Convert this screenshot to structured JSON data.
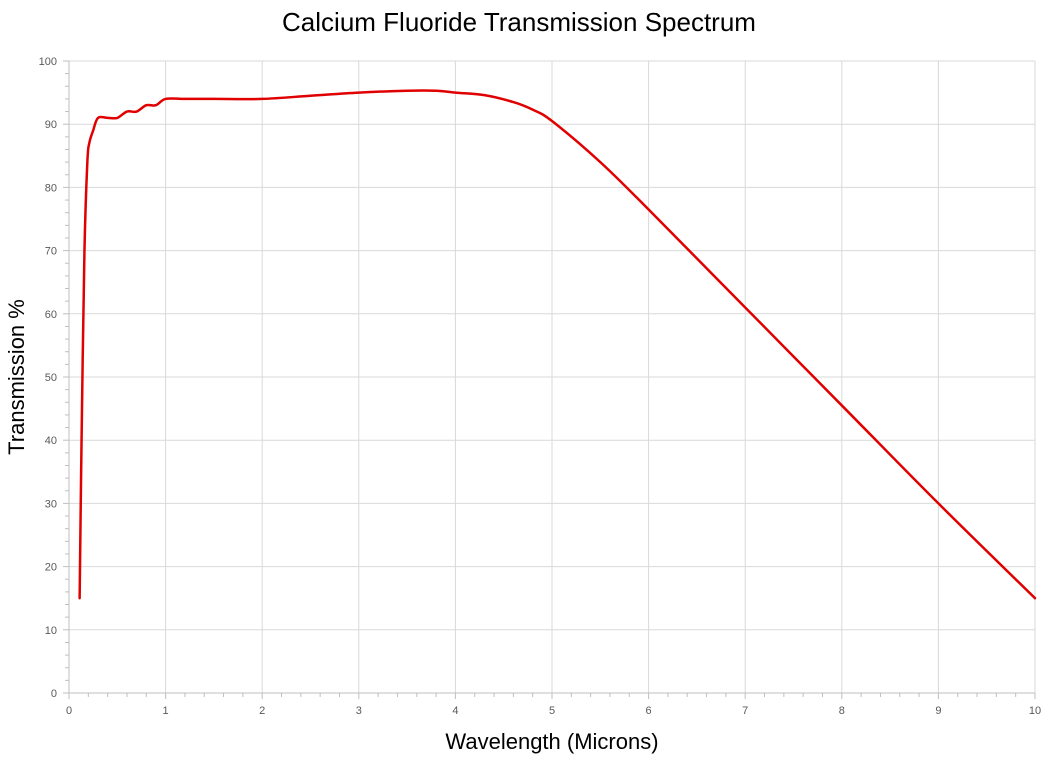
{
  "chart_data": {
    "type": "line",
    "title": "Calcium Fluoride Transmission Spectrum",
    "xlabel": "Wavelength (Microns)",
    "ylabel": "Transmission %",
    "xlim": [
      0,
      10
    ],
    "ylim": [
      0,
      100
    ],
    "x_ticks": [
      "0",
      "1",
      "2",
      "3",
      "4",
      "5",
      "6",
      "7",
      "8",
      "9",
      "10"
    ],
    "y_ticks": [
      "0",
      "10",
      "20",
      "30",
      "40",
      "50",
      "60",
      "70",
      "80",
      "90",
      "100"
    ],
    "grid": true,
    "legend": "none",
    "series": [
      {
        "color": "#e00000",
        "points": [
          [
            0.11,
            15
          ],
          [
            0.13,
            40
          ],
          [
            0.16,
            70
          ],
          [
            0.19,
            84
          ],
          [
            0.21,
            87
          ],
          [
            0.25,
            89
          ],
          [
            0.3,
            91
          ],
          [
            0.4,
            91
          ],
          [
            0.5,
            91
          ],
          [
            0.6,
            92
          ],
          [
            0.7,
            92
          ],
          [
            0.8,
            93
          ],
          [
            0.9,
            93
          ],
          [
            1.0,
            94
          ],
          [
            1.2,
            94
          ],
          [
            1.5,
            94
          ],
          [
            2.0,
            94
          ],
          [
            2.5,
            94.5
          ],
          [
            3.0,
            95
          ],
          [
            3.5,
            95.3
          ],
          [
            3.8,
            95.3
          ],
          [
            4.0,
            95
          ],
          [
            4.3,
            94.6
          ],
          [
            4.6,
            93.5
          ],
          [
            4.8,
            92.3
          ],
          [
            5.0,
            90.5
          ],
          [
            5.5,
            84
          ],
          [
            6.0,
            76.5
          ],
          [
            7.0,
            61
          ],
          [
            8.0,
            45.5
          ],
          [
            9.0,
            30
          ],
          [
            10.0,
            15
          ]
        ]
      }
    ]
  }
}
